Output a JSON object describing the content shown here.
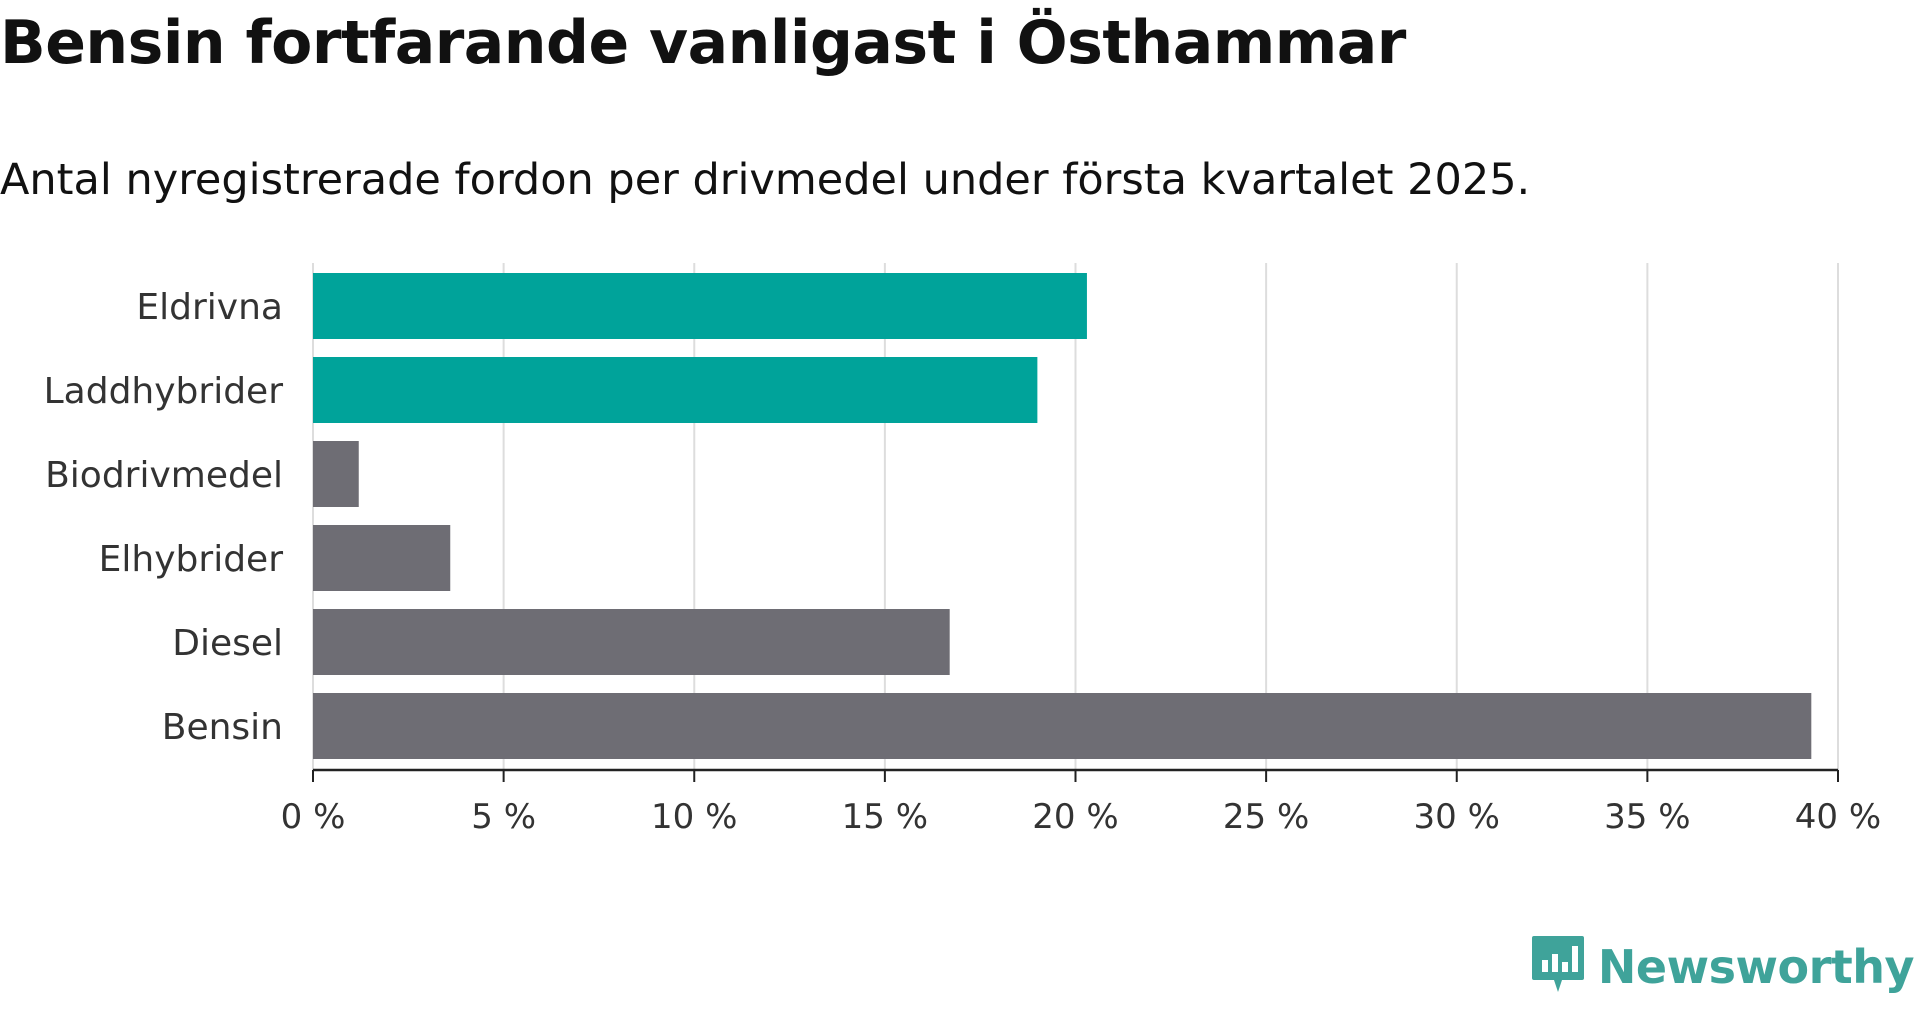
{
  "header": {
    "title": "Bensin fortfarande vanligast i Östhammar",
    "subtitle": "Antal nyregistrerade fordon per drivmedel under första kvartalet 2025."
  },
  "brand": {
    "name": "Newsworthy",
    "icon": "newsworthy-logo-icon",
    "color": "#3fa39a"
  },
  "colors": {
    "highlight": "#00a39a",
    "default": "#6e6d74",
    "grid": "#dddddd",
    "axis": "#222222"
  },
  "chart_data": {
    "type": "bar",
    "orientation": "horizontal",
    "categories": [
      "Eldrivna",
      "Laddhybrider",
      "Biodrivmedel",
      "Elhybrider",
      "Diesel",
      "Bensin"
    ],
    "values": [
      20.3,
      19.0,
      1.2,
      3.6,
      16.7,
      39.3
    ],
    "highlighted": [
      true,
      true,
      false,
      false,
      false,
      false
    ],
    "x_ticks": [
      0,
      5,
      10,
      15,
      20,
      25,
      30,
      35,
      40
    ],
    "x_tick_labels": [
      "0 %",
      "5 %",
      "10 %",
      "15 %",
      "20 %",
      "25 %",
      "30 %",
      "35 %",
      "40 %"
    ],
    "xlim": [
      0,
      40
    ],
    "grid": true
  }
}
